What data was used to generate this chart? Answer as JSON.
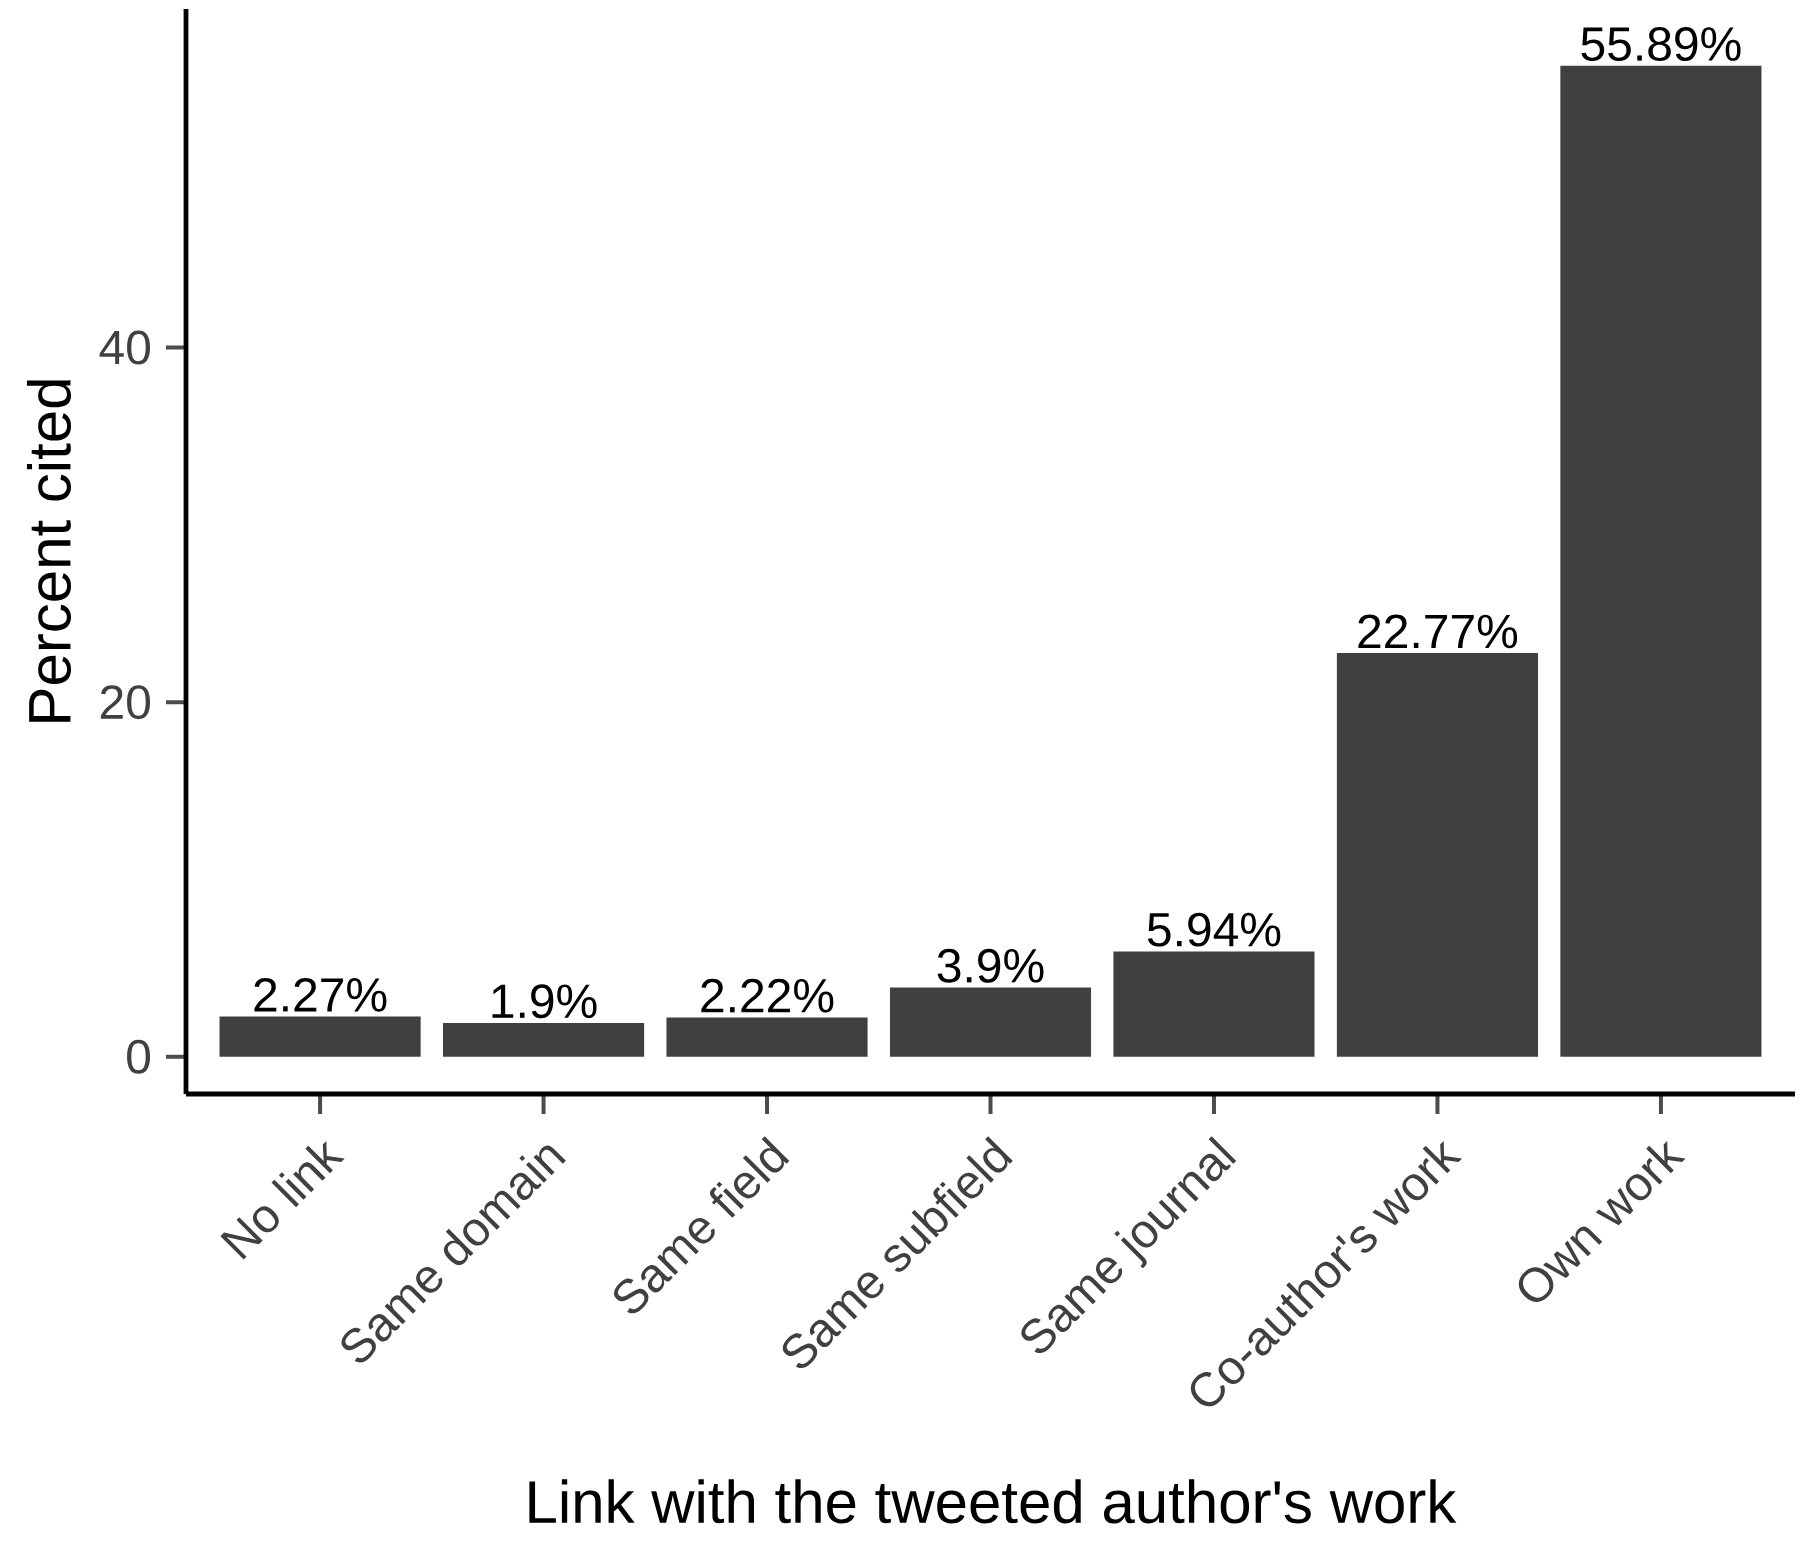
{
  "chart_data": {
    "type": "bar",
    "xlabel": "Link with the tweeted author's work",
    "ylabel": "Percent cited",
    "categories": [
      "No link",
      "Same domain",
      "Same field",
      "Same subfield",
      "Same journal",
      "Co-author's work",
      "Own work"
    ],
    "values": [
      2.27,
      1.9,
      2.22,
      3.9,
      5.94,
      22.77,
      55.89
    ],
    "value_labels": [
      "2.27%",
      "1.9%",
      "2.22%",
      "3.9%",
      "5.94%",
      "22.77%",
      "55.89%"
    ],
    "color": "#404040",
    "ylim": [
      -2.1,
      59.1
    ],
    "yticks": [
      0,
      20,
      40
    ]
  }
}
